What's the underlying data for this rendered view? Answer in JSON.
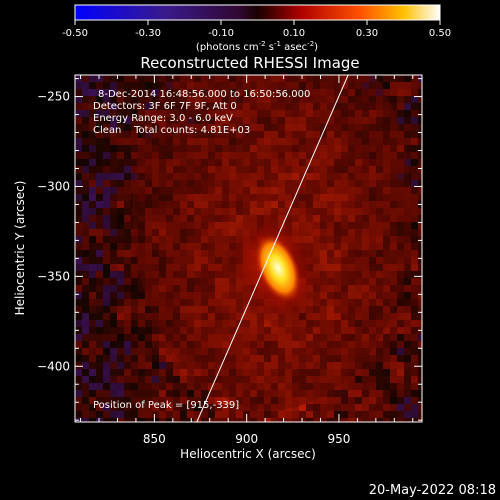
{
  "chart_data": {
    "type": "heatmap",
    "title": "Reconstructed RHESSI Image",
    "xlabel": "Heliocentric X (arcsec)",
    "ylabel": "Heliocentric Y (arcsec)",
    "xlim": [
      807,
      995
    ],
    "ylim": [
      -431,
      -238
    ],
    "x_ticks": [
      850,
      900,
      950
    ],
    "y_ticks": [
      -250,
      -300,
      -350,
      -400
    ],
    "peak": {
      "x": 915,
      "y": -339
    },
    "colorbar": {
      "min": -0.5,
      "max": 0.5,
      "ticks": [
        "-0.50",
        "-0.30",
        "-0.10",
        "0.10",
        "0.30",
        "0.50"
      ],
      "unit_base": "(photons cm",
      "unit_exp1": "-2",
      "unit_mid": " s",
      "unit_exp2": "-1",
      "unit_mid2": " asec",
      "unit_exp3": "-2",
      "unit_end": ")"
    },
    "limb_line": [
      [
        873,
        -431
      ],
      [
        955,
        -238
      ]
    ],
    "annotations": {
      "time": "8-Dec-2014 16:48:56.000 to 16:50:56.000",
      "detectors": "Detectors: 3F 6F 7F 9F, Att 0",
      "energy": "Energy Range: 3.0 - 6.0 keV",
      "clean": "Clean    Total counts: 4.81E+03",
      "peak_text": "Position of Peak = [915,-339]"
    }
  },
  "footer": {
    "date": "20-May-2022 08:18"
  }
}
